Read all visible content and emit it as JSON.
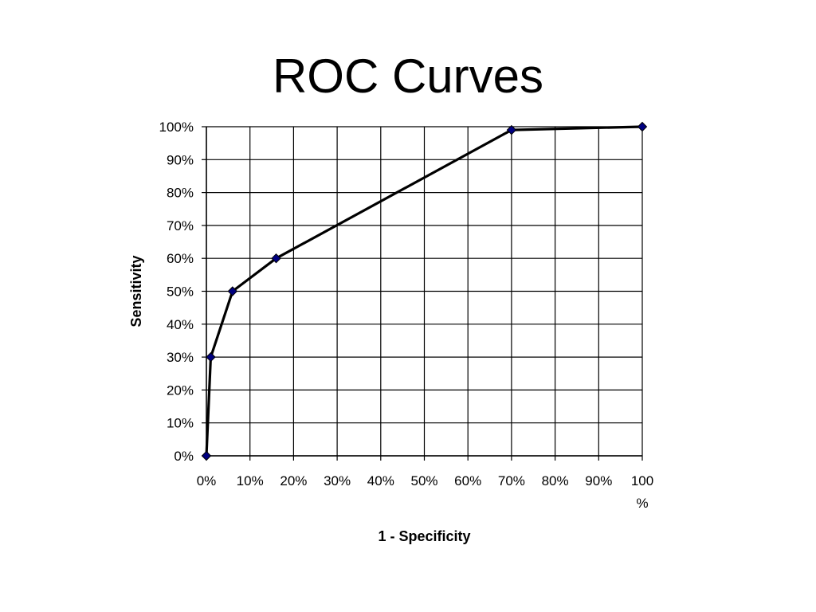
{
  "chart_data": {
    "type": "line",
    "title": "ROC Curves",
    "xlabel": "1 - Specificity",
    "ylabel": "Sensitivity",
    "xlim": [
      0,
      100
    ],
    "ylim": [
      0,
      100
    ],
    "x_ticks": [
      "0%",
      "10%",
      "20%",
      "30%",
      "40%",
      "50%",
      "60%",
      "70%",
      "80%",
      "90%",
      "100",
      "%"
    ],
    "y_ticks": [
      "0%",
      "10%",
      "20%",
      "30%",
      "40%",
      "50%",
      "60%",
      "70%",
      "80%",
      "90%",
      "100%"
    ],
    "grid": true,
    "legend": "none",
    "series": [
      {
        "x": [
          0,
          1,
          6,
          16,
          70,
          100
        ],
        "y": [
          0,
          30,
          50,
          60,
          99,
          100
        ],
        "line_color": "#000000",
        "marker_color": "#000080",
        "marker": "diamond"
      }
    ]
  }
}
